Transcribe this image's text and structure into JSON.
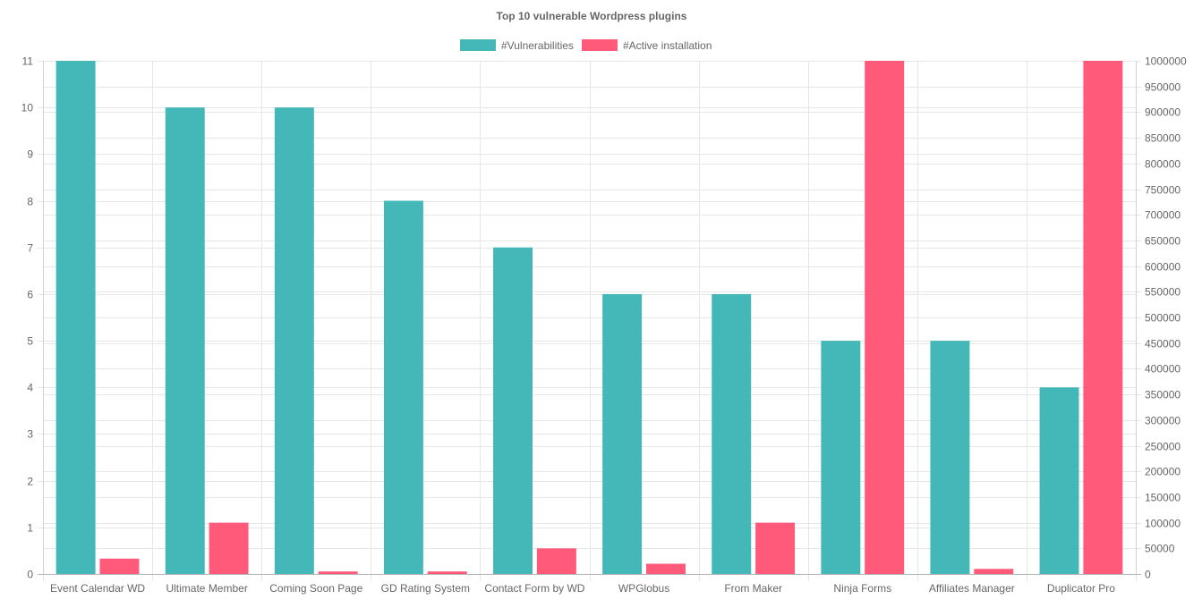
{
  "chart_data": {
    "type": "bar",
    "title": "Top 10 vulnerable Wordpress plugins",
    "categories": [
      "Event Calendar WD",
      "Ultimate Member",
      "Coming Soon Page",
      "GD Rating System",
      "Contact Form by WD",
      "WPGlobus",
      "From Maker",
      "Ninja Forms",
      "Affiliates Manager",
      "Duplicator Pro"
    ],
    "series": [
      {
        "name": "#Vulnerabilities",
        "axis": "left",
        "color": "#44b8b8",
        "values": [
          11,
          10,
          10,
          8,
          7,
          6,
          6,
          5,
          5,
          4
        ]
      },
      {
        "name": "#Active installation",
        "axis": "right",
        "color": "#ff5a7a",
        "values": [
          30000,
          100000,
          5000,
          5000,
          50000,
          20000,
          100000,
          1000000,
          10000,
          1000000
        ]
      }
    ],
    "y_left": {
      "min": 0,
      "max": 11,
      "ticks": [
        "0",
        "1",
        "2",
        "3",
        "4",
        "5",
        "6",
        "7",
        "8",
        "9",
        "10",
        "11"
      ]
    },
    "y_right": {
      "min": 0,
      "max": 1000000,
      "ticks": [
        "0",
        "50000",
        "100000",
        "150000",
        "200000",
        "250000",
        "300000",
        "350000",
        "400000",
        "450000",
        "500000",
        "550000",
        "600000",
        "650000",
        "700000",
        "750000",
        "800000",
        "850000",
        "900000",
        "950000",
        "1000000"
      ]
    },
    "legend_position": "top-center",
    "grid": true
  }
}
